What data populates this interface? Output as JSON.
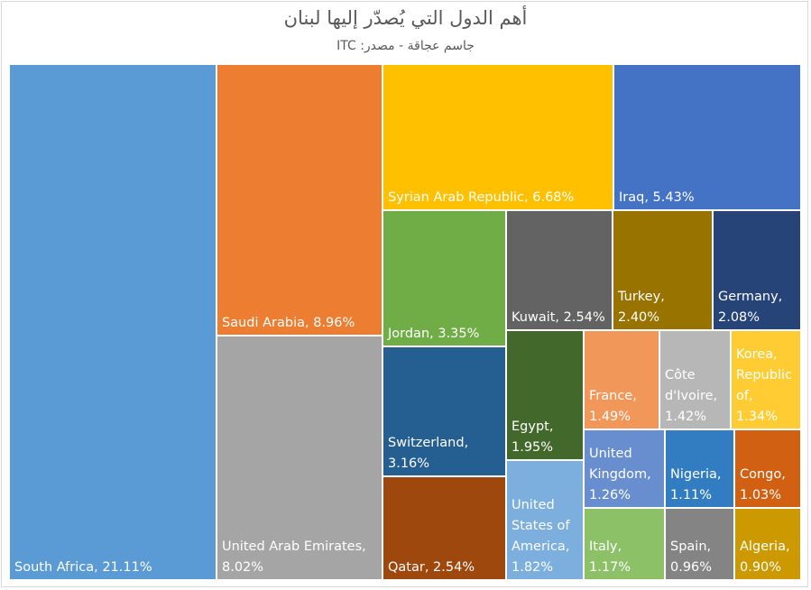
{
  "chart_data": {
    "type": "treemap",
    "title": "أهم الدول التي يُصدّر إليها لبنان",
    "subtitle": "جاسم عجاقة - مصدر: ITC",
    "unit": "%",
    "items": [
      {
        "name": "South Africa",
        "value": 21.11,
        "color": "#5b9bd5",
        "lines": [
          "South Africa, 21.11%"
        ]
      },
      {
        "name": "Saudi Arabia",
        "value": 8.96,
        "color": "#ed7d31",
        "lines": [
          "Saudi Arabia, 8.96%"
        ]
      },
      {
        "name": "United Arab Emirates",
        "value": 8.02,
        "color": "#a5a5a5",
        "lines": [
          "United Arab Emirates,",
          "8.02%"
        ]
      },
      {
        "name": "Syrian Arab Republic",
        "value": 6.68,
        "color": "#ffc000",
        "lines": [
          "Syrian Arab Republic, 6.68%"
        ]
      },
      {
        "name": "Iraq",
        "value": 5.43,
        "color": "#4472c4",
        "lines": [
          "Iraq, 5.43%"
        ]
      },
      {
        "name": "Jordan",
        "value": 3.35,
        "color": "#70ad47",
        "lines": [
          "Jordan, 3.35%"
        ]
      },
      {
        "name": "Switzerland",
        "value": 3.16,
        "color": "#255e91",
        "lines": [
          "Switzerland,",
          "3.16%"
        ]
      },
      {
        "name": "Qatar",
        "value": 2.54,
        "color": "#9e480e",
        "lines": [
          "Qatar, 2.54%"
        ]
      },
      {
        "name": "Kuwait",
        "value": 2.54,
        "color": "#636363",
        "lines": [
          "Kuwait, 2.54%"
        ]
      },
      {
        "name": "Turkey",
        "value": 2.4,
        "color": "#997300",
        "lines": [
          "Turkey,",
          "2.40%"
        ]
      },
      {
        "name": "Germany",
        "value": 2.08,
        "color": "#264478",
        "lines": [
          "Germany,",
          "2.08%"
        ]
      },
      {
        "name": "Egypt",
        "value": 1.95,
        "color": "#43682b",
        "lines": [
          "Egypt,",
          "1.95%"
        ]
      },
      {
        "name": "United States of America",
        "value": 1.82,
        "color": "#7cafdd",
        "lines": [
          "United",
          "States of",
          "America,",
          "1.82%"
        ]
      },
      {
        "name": "France",
        "value": 1.49,
        "color": "#f1975a",
        "lines": [
          "France,",
          "1.49%"
        ]
      },
      {
        "name": "Côte d'Ivoire",
        "value": 1.42,
        "color": "#b7b7b7",
        "lines": [
          "Côte",
          "d'Ivoire,",
          "1.42%"
        ]
      },
      {
        "name": "Korea, Republic of",
        "value": 1.34,
        "color": "#ffcd33",
        "lines": [
          "Korea,",
          "Republic",
          "of,",
          "1.34%"
        ]
      },
      {
        "name": "United Kingdom",
        "value": 1.26,
        "color": "#698ed0",
        "lines": [
          "United",
          "Kingdom,",
          "1.26%"
        ]
      },
      {
        "name": "Italy",
        "value": 1.17,
        "color": "#8cc168",
        "lines": [
          "Italy,",
          "1.17%"
        ]
      },
      {
        "name": "Nigeria",
        "value": 1.11,
        "color": "#327dc2",
        "lines": [
          "Nigeria,",
          "1.11%"
        ]
      },
      {
        "name": "Congo",
        "value": 1.03,
        "color": "#d26012",
        "lines": [
          "Congo,",
          "1.03%"
        ]
      },
      {
        "name": "Spain",
        "value": 0.96,
        "color": "#848484",
        "lines": [
          "Spain,",
          "0.96%"
        ]
      },
      {
        "name": "Algeria",
        "value": 0.9,
        "color": "#cc9a00",
        "lines": [
          "Algeria,",
          "0.90%"
        ]
      }
    ]
  }
}
